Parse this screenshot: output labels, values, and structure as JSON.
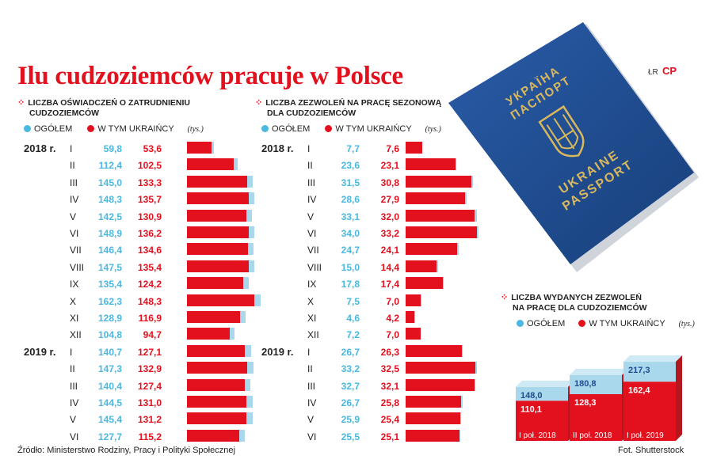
{
  "title": "Ilu cudzoziemców pracuje w Polsce",
  "credit_top": "ŁR",
  "cp_logo": "CP",
  "source": "Źródło: Ministerstwo Rodziny, Pracy i Polityki Społecznej",
  "photo_credit": "Fot. Shutterstock",
  "passport": {
    "line1": "УКРАЇНА",
    "line2": "ПАСПОРТ",
    "line3": "UKRAINE",
    "line4": "PASSPORT"
  },
  "colors": {
    "red": "#e3101e",
    "blue": "#a9d8ec",
    "blue_text": "#4ab8e0",
    "passport": "#1f4b8c"
  },
  "legend": {
    "total": "OGÓŁEM",
    "ukr": "W TYM UKRAIŃCY",
    "unit": "(tys.)"
  },
  "chart_data": [
    {
      "type": "bar",
      "title": "Liczba oświadczeń o zatrudnieniu cudzoziemców",
      "title_line1": "Liczba oświadczeń o zatrudnieniu",
      "title_line2": "cudzoziemców",
      "series_names": [
        "OGÓŁEM",
        "W TYM UKRAIŃCY"
      ],
      "unit": "(tys.)",
      "rows": [
        {
          "year": "2018 r.",
          "month": "I",
          "total": "59,8",
          "ukr": "53,6"
        },
        {
          "year": "",
          "month": "II",
          "total": "112,4",
          "ukr": "102,5"
        },
        {
          "year": "",
          "month": "III",
          "total": "145,0",
          "ukr": "133,3"
        },
        {
          "year": "",
          "month": "IV",
          "total": "148,3",
          "ukr": "135,7"
        },
        {
          "year": "",
          "month": "V",
          "total": "142,5",
          "ukr": "130,9"
        },
        {
          "year": "",
          "month": "VI",
          "total": "148,9",
          "ukr": "136,2"
        },
        {
          "year": "",
          "month": "VII",
          "total": "146,4",
          "ukr": "134,6"
        },
        {
          "year": "",
          "month": "VIII",
          "total": "147,5",
          "ukr": "135,4"
        },
        {
          "year": "",
          "month": "IX",
          "total": "135,4",
          "ukr": "124,2"
        },
        {
          "year": "",
          "month": "X",
          "total": "162,3",
          "ukr": "148,3"
        },
        {
          "year": "",
          "month": "XI",
          "total": "128,9",
          "ukr": "116,9"
        },
        {
          "year": "",
          "month": "XII",
          "total": "104,8",
          "ukr": "94,7"
        },
        {
          "year": "2019 r.",
          "month": "I",
          "total": "140,7",
          "ukr": "127,1"
        },
        {
          "year": "",
          "month": "II",
          "total": "147,3",
          "ukr": "132,9"
        },
        {
          "year": "",
          "month": "III",
          "total": "140,4",
          "ukr": "127,4"
        },
        {
          "year": "",
          "month": "IV",
          "total": "144,5",
          "ukr": "131,0"
        },
        {
          "year": "",
          "month": "V",
          "total": "145,4",
          "ukr": "131,2"
        },
        {
          "year": "",
          "month": "VI",
          "total": "127,7",
          "ukr": "115,2"
        }
      ]
    },
    {
      "type": "bar",
      "title": "Liczba zezwoleń na pracę sezonową dla cudzoziemców",
      "title_line1": "Liczba zezwoleń na pracę sezonową",
      "title_line2": "dla cudzoziemców",
      "series_names": [
        "OGÓŁEM",
        "W TYM UKRAIŃCY"
      ],
      "unit": "(tys.)",
      "rows": [
        {
          "year": "2018 r.",
          "month": "I",
          "total": "7,7",
          "ukr": "7,6"
        },
        {
          "year": "",
          "month": "II",
          "total": "23,6",
          "ukr": "23,1"
        },
        {
          "year": "",
          "month": "III",
          "total": "31,5",
          "ukr": "30,8"
        },
        {
          "year": "",
          "month": "IV",
          "total": "28,6",
          "ukr": "27,9"
        },
        {
          "year": "",
          "month": "V",
          "total": "33,1",
          "ukr": "32,0"
        },
        {
          "year": "",
          "month": "VI",
          "total": "34,0",
          "ukr": "33,2"
        },
        {
          "year": "",
          "month": "VII",
          "total": "24,7",
          "ukr": "24,1"
        },
        {
          "year": "",
          "month": "VIII",
          "total": "15,0",
          "ukr": "14,4"
        },
        {
          "year": "",
          "month": "IX",
          "total": "17,8",
          "ukr": "17,4"
        },
        {
          "year": "",
          "month": "X",
          "total": "7,5",
          "ukr": "7,0"
        },
        {
          "year": "",
          "month": "XI",
          "total": "4,6",
          "ukr": "4,2"
        },
        {
          "year": "",
          "month": "XII",
          "total": "7,2",
          "ukr": "7,0"
        },
        {
          "year": "2019 r.",
          "month": "I",
          "total": "26,7",
          "ukr": "26,3"
        },
        {
          "year": "",
          "month": "II",
          "total": "33,2",
          "ukr": "32,5"
        },
        {
          "year": "",
          "month": "III",
          "total": "32,7",
          "ukr": "32,1"
        },
        {
          "year": "",
          "month": "IV",
          "total": "26,7",
          "ukr": "25,8"
        },
        {
          "year": "",
          "month": "V",
          "total": "25,9",
          "ukr": "25,4"
        },
        {
          "year": "",
          "month": "VI",
          "total": "25,5",
          "ukr": "25,1"
        }
      ]
    },
    {
      "type": "bar",
      "title": "Liczba wydanych zezwoleń na pracę dla cudzoziemców",
      "title_line1": "Liczba wydanych zezwoleń",
      "title_line2": "na pracę dla cudzoziemców",
      "series_names": [
        "OGÓŁEM",
        "W TYM UKRAIŃCY"
      ],
      "unit": "(tys.)",
      "categories": [
        "I poł. 2018",
        "II poł. 2018",
        "I poł. 2019"
      ],
      "totals": [
        "148,0",
        "180,8",
        "217,3"
      ],
      "ukr": [
        "110,1",
        "128,3",
        "162,4"
      ]
    }
  ]
}
